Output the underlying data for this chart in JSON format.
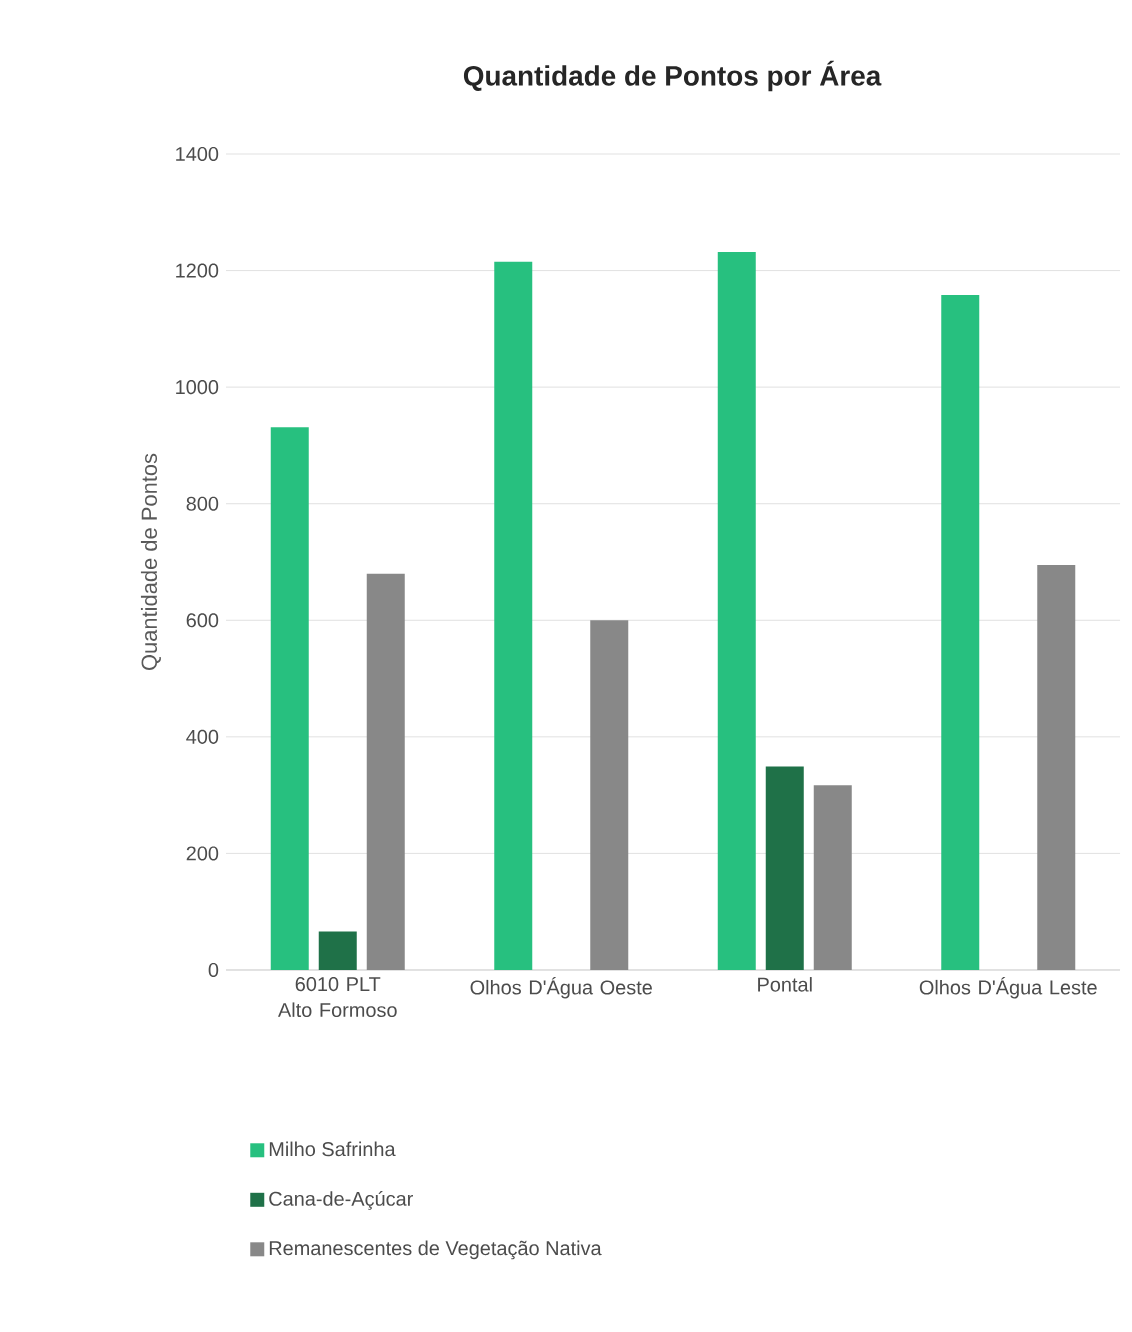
{
  "chart_data": {
    "type": "bar",
    "title": "Quantidade de Pontos por Área",
    "ylabel": "Quantidade de Pontos",
    "categories": [
      "6010 PLT Alto Formoso",
      "Olhos D'Água Oeste",
      "Pontal",
      "Olhos D'Água Leste"
    ],
    "series": [
      {
        "name": "Milho Safrinha",
        "color": "#27c07f",
        "values": [
          931,
          1215,
          1232,
          1158
        ]
      },
      {
        "name": "Cana-de-Açúcar",
        "color": "#1f7148",
        "values": [
          66,
          null,
          349,
          null
        ]
      },
      {
        "name": "Remanescentes de Vegetação Nativa",
        "color": "#888888",
        "values": [
          680,
          600,
          317,
          695
        ]
      }
    ],
    "ylim": [
      0,
      1400
    ],
    "yticks": [
      0,
      200,
      400,
      600,
      800,
      1000,
      1200,
      1400
    ],
    "grid": "y",
    "legend": "bottom"
  }
}
